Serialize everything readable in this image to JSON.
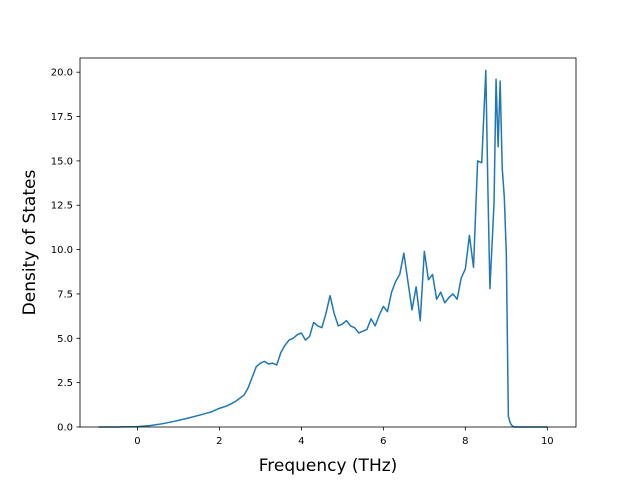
{
  "chart_data": {
    "type": "line",
    "title": "",
    "xlabel": "Frequency (THz)",
    "ylabel": "Density of States",
    "xlim": [
      -1.4,
      10.7
    ],
    "ylim": [
      0,
      20.8
    ],
    "grid": false,
    "xticks": [
      0,
      2,
      4,
      6,
      8,
      10
    ],
    "xtick_labels": [
      "0",
      "2",
      "4",
      "6",
      "8",
      "10"
    ],
    "yticks": [
      0,
      2.5,
      5,
      7.5,
      10,
      12.5,
      15,
      17.5,
      20
    ],
    "ytick_labels": [
      "0.0",
      "2.5",
      "5.0",
      "7.5",
      "10.0",
      "12.5",
      "15.0",
      "17.5",
      "20.0"
    ],
    "series": [
      {
        "color": "#1f77b4",
        "x": [
          -0.95,
          -0.5,
          0,
          0.3,
          0.6,
          0.9,
          1.2,
          1.5,
          1.8,
          2.0,
          2.2,
          2.4,
          2.6,
          2.7,
          2.8,
          2.9,
          3.0,
          3.1,
          3.2,
          3.3,
          3.4,
          3.5,
          3.6,
          3.7,
          3.8,
          3.9,
          4.0,
          4.1,
          4.2,
          4.3,
          4.4,
          4.5,
          4.6,
          4.7,
          4.8,
          4.9,
          5.0,
          5.1,
          5.2,
          5.3,
          5.4,
          5.5,
          5.6,
          5.7,
          5.8,
          5.9,
          6.0,
          6.1,
          6.2,
          6.3,
          6.4,
          6.5,
          6.6,
          6.7,
          6.8,
          6.9,
          7.0,
          7.1,
          7.2,
          7.3,
          7.4,
          7.5,
          7.6,
          7.7,
          7.8,
          7.9,
          8.0,
          8.1,
          8.2,
          8.3,
          8.4,
          8.5,
          8.55,
          8.6,
          8.7,
          8.75,
          8.8,
          8.85,
          8.9,
          8.95,
          9.0,
          9.05,
          9.1,
          9.15,
          9.2,
          9.3,
          9.5,
          10.0
        ],
        "y": [
          0,
          0,
          0.02,
          0.08,
          0.18,
          0.32,
          0.48,
          0.66,
          0.85,
          1.05,
          1.2,
          1.45,
          1.8,
          2.2,
          2.8,
          3.4,
          3.6,
          3.7,
          3.55,
          3.6,
          3.5,
          4.2,
          4.6,
          4.9,
          5.0,
          5.2,
          5.3,
          4.9,
          5.1,
          5.9,
          5.7,
          5.6,
          6.4,
          7.4,
          6.4,
          5.7,
          5.8,
          6.0,
          5.7,
          5.6,
          5.3,
          5.4,
          5.5,
          6.1,
          5.7,
          6.3,
          6.8,
          6.5,
          7.6,
          8.2,
          8.6,
          9.8,
          8.2,
          6.6,
          7.9,
          6.0,
          9.9,
          8.3,
          8.6,
          7.2,
          7.6,
          7.0,
          7.3,
          7.5,
          7.2,
          8.4,
          8.9,
          10.8,
          9.0,
          15.0,
          14.9,
          20.1,
          13.5,
          7.8,
          12.6,
          19.6,
          15.8,
          19.5,
          14.6,
          13.0,
          9.8,
          0.6,
          0.2,
          0.05,
          0,
          0,
          0,
          0
        ]
      }
    ]
  }
}
